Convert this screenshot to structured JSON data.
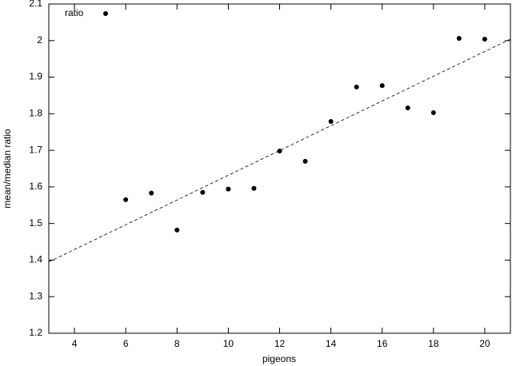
{
  "chart_data": {
    "type": "scatter",
    "x_label": "pigeons",
    "y_label": "mean/median ratio",
    "xlim": [
      3,
      21
    ],
    "xticks": [
      4,
      6,
      8,
      10,
      12,
      14,
      16,
      18,
      20
    ],
    "ylim": [
      1.2,
      2.1
    ],
    "yticks": [
      1.2,
      1.3,
      1.4,
      1.5,
      1.6,
      1.7,
      1.8,
      1.9,
      2,
      2.1
    ],
    "legend": "top-left",
    "series": [
      {
        "name": "ratio",
        "color": "#000000",
        "x": [
          6,
          7,
          8,
          9,
          10,
          11,
          12,
          13,
          14,
          15,
          16,
          17,
          18,
          19,
          20
        ],
        "values": [
          1.565,
          1.583,
          1.482,
          1.585,
          1.594,
          1.596,
          1.698,
          1.67,
          1.779,
          1.873,
          1.877,
          1.816,
          1.803,
          2.006,
          2.004
        ]
      }
    ],
    "fit_line": {
      "x": [
        3,
        21
      ],
      "values": [
        1.395,
        2.004
      ],
      "color": "#000000",
      "style": "dashed"
    }
  }
}
